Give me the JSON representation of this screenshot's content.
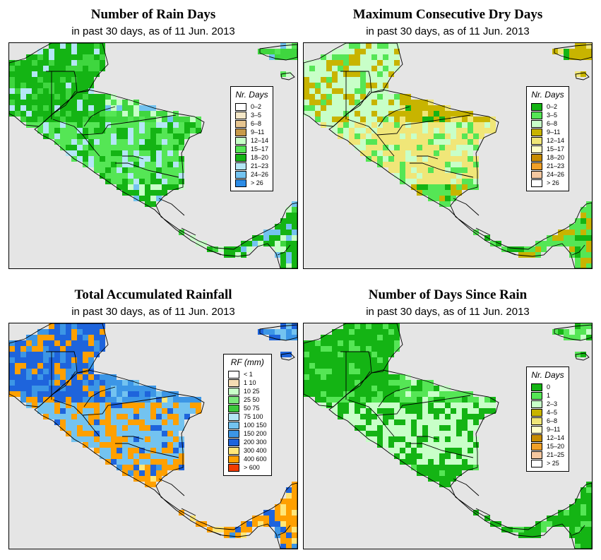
{
  "panels": [
    {
      "id": "rain-days",
      "title": "Number of Rain Days",
      "subtitle": "in past 30 days, as of  11 Jun. 2013",
      "legend_title": "Nr. Days",
      "legend": [
        {
          "label": "0–2",
          "color": "#ffffff"
        },
        {
          "label": "3–5",
          "color": "#f4e7c7"
        },
        {
          "label": "6–8",
          "color": "#e6c590"
        },
        {
          "label": "9–11",
          "color": "#c89a4a"
        },
        {
          "label": "12–14",
          "color": "#c8ffc8"
        },
        {
          "label": "15–17",
          "color": "#55e655"
        },
        {
          "label": "18–20",
          "color": "#14b414"
        },
        {
          "label": "21–23",
          "color": "#b4e6f5"
        },
        {
          "label": "24–26",
          "color": "#73c3f0"
        },
        {
          "label": "> 26",
          "color": "#2d8ce6"
        }
      ],
      "palette": [
        "#14b414",
        "#3fd63f",
        "#55e655",
        "#14b414",
        "#c8ffc8",
        "#b4e6f5",
        "#73c3f0"
      ]
    },
    {
      "id": "dry-days",
      "title": "Maximum Consecutive Dry Days",
      "subtitle": "in past 30 days, as of  11 Jun. 2013",
      "legend_title": "Nr. Days",
      "legend": [
        {
          "label": "0–2",
          "color": "#14b414"
        },
        {
          "label": "3–5",
          "color": "#55e655"
        },
        {
          "label": "6–8",
          "color": "#c8ffc8"
        },
        {
          "label": "9–11",
          "color": "#c8b400"
        },
        {
          "label": "12–14",
          "color": "#f0e678"
        },
        {
          "label": "15–17",
          "color": "#ffffc8"
        },
        {
          "label": "18–20",
          "color": "#c88c00"
        },
        {
          "label": "21–23",
          "color": "#f0a028"
        },
        {
          "label": "24–26",
          "color": "#f5c8a0"
        },
        {
          "label": "> 26",
          "color": "#ffffff"
        }
      ],
      "palette": [
        "#c8b400",
        "#c8ffc8",
        "#c8b400",
        "#f0e678",
        "#55e655",
        "#14b414",
        "#c8ffc8"
      ]
    },
    {
      "id": "total-rainfall",
      "title": "Total Accumulated Rainfall",
      "subtitle": "in past 30 days, as of  11 Jun. 2013",
      "legend_title": "RF (mm)",
      "legend": [
        {
          "label": "< 1",
          "color": "#ffffff"
        },
        {
          "label": "1  10",
          "color": "#f5dcb4"
        },
        {
          "label": "10  25",
          "color": "#c8ffc8"
        },
        {
          "label": "25  50",
          "color": "#7be87b"
        },
        {
          "label": "50  75",
          "color": "#3cc83c"
        },
        {
          "label": "75  100",
          "color": "#b4e6f5"
        },
        {
          "label": "100  150",
          "color": "#73c3f0"
        },
        {
          "label": "150  200",
          "color": "#3c96e6"
        },
        {
          "label": "200  300",
          "color": "#1e64dc"
        },
        {
          "label": "300  400",
          "color": "#ffe678"
        },
        {
          "label": "400  600",
          "color": "#ffa000"
        },
        {
          "label": "> 600",
          "color": "#f03c00"
        }
      ],
      "palette": [
        "#ffa000",
        "#ffe678",
        "#1e64dc",
        "#3c96e6",
        "#73c3f0",
        "#ffa000",
        "#1e64dc"
      ]
    },
    {
      "id": "days-since-rain",
      "title": "Number of Days Since Rain",
      "subtitle": "in past 30 days, as of  11 Jun. 2013",
      "legend_title": "Nr. Days",
      "legend": [
        {
          "label": "0",
          "color": "#14b414"
        },
        {
          "label": "1",
          "color": "#55e655"
        },
        {
          "label": "2–3",
          "color": "#c8ffc8"
        },
        {
          "label": "4–5",
          "color": "#c8b400"
        },
        {
          "label": "6–8",
          "color": "#f0e678"
        },
        {
          "label": "9–11",
          "color": "#ffffc8"
        },
        {
          "label": "12–14",
          "color": "#c88c00"
        },
        {
          "label": "15–20",
          "color": "#f0a028"
        },
        {
          "label": "21–25",
          "color": "#f5c8a0"
        },
        {
          "label": "> 25",
          "color": "#ffffff"
        }
      ],
      "palette": [
        "#14b414",
        "#14b414",
        "#14b414",
        "#14b414",
        "#55e655",
        "#c8ffc8",
        "#14b414"
      ]
    }
  ],
  "colors": {
    "sea": "#e5e5e5",
    "border": "#000000"
  }
}
